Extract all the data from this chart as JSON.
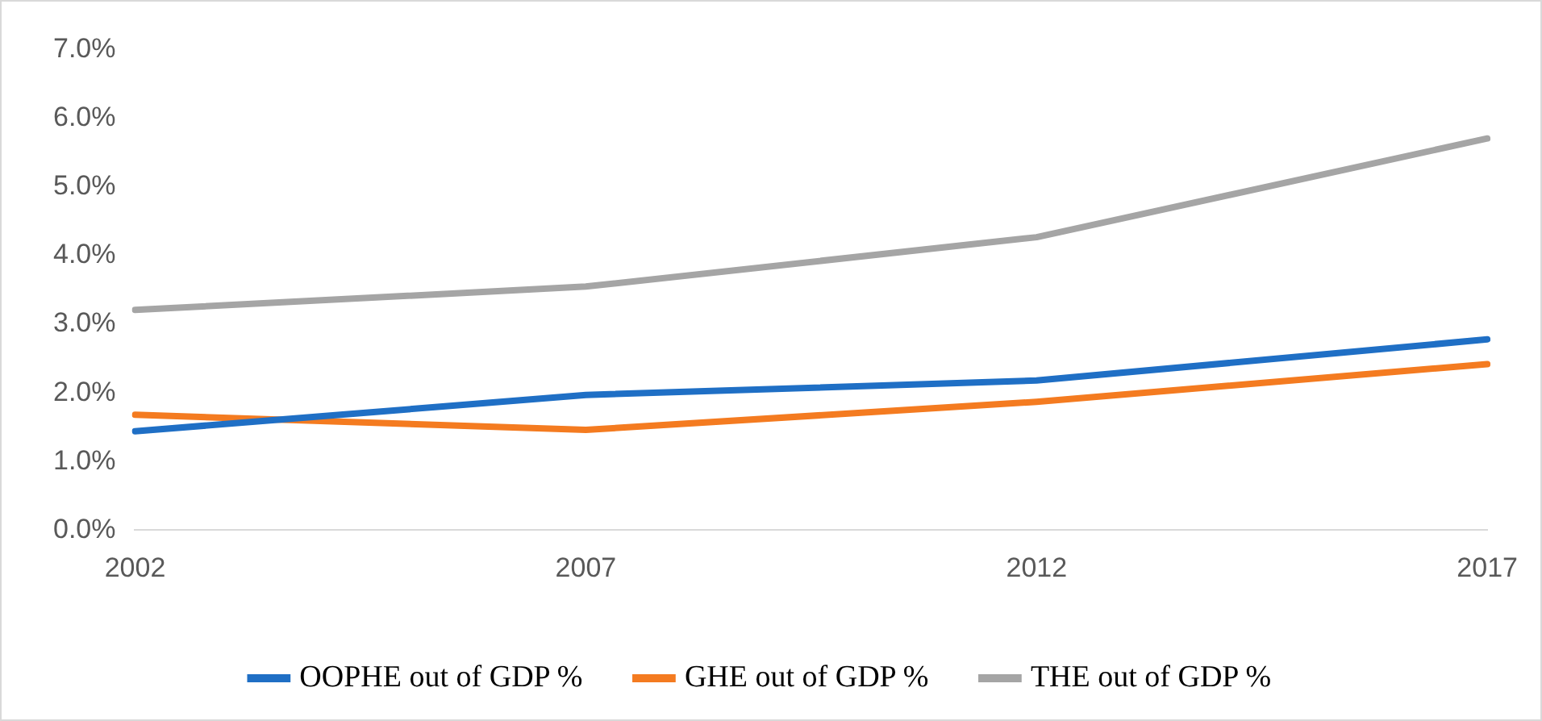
{
  "chart_data": {
    "type": "line",
    "categories": [
      "2002",
      "2007",
      "2012",
      "2017"
    ],
    "series": [
      {
        "name": "OOPHE out of GDP %",
        "color": "#1f6fc5",
        "values": [
          1.44,
          1.97,
          2.18,
          2.78
        ]
      },
      {
        "name": "GHE out of GDP %",
        "color": "#f47b20",
        "values": [
          1.68,
          1.46,
          1.87,
          2.42
        ]
      },
      {
        "name": "THE out of GDP %",
        "color": "#a5a5a5",
        "values": [
          3.21,
          3.55,
          4.27,
          5.71
        ]
      }
    ],
    "ylim": [
      0,
      7
    ],
    "yticks": [
      {
        "value": 0,
        "label": "0.0%"
      },
      {
        "value": 1,
        "label": "1.0%"
      },
      {
        "value": 2,
        "label": "2.0%"
      },
      {
        "value": 3,
        "label": "3.0%"
      },
      {
        "value": 4,
        "label": "4.0%"
      },
      {
        "value": 5,
        "label": "5.0%"
      },
      {
        "value": 6,
        "label": "6.0%"
      },
      {
        "value": 7,
        "label": "7.0%"
      }
    ],
    "grid": false,
    "legend": "bottom",
    "marker": "none",
    "line_style": "solid"
  }
}
